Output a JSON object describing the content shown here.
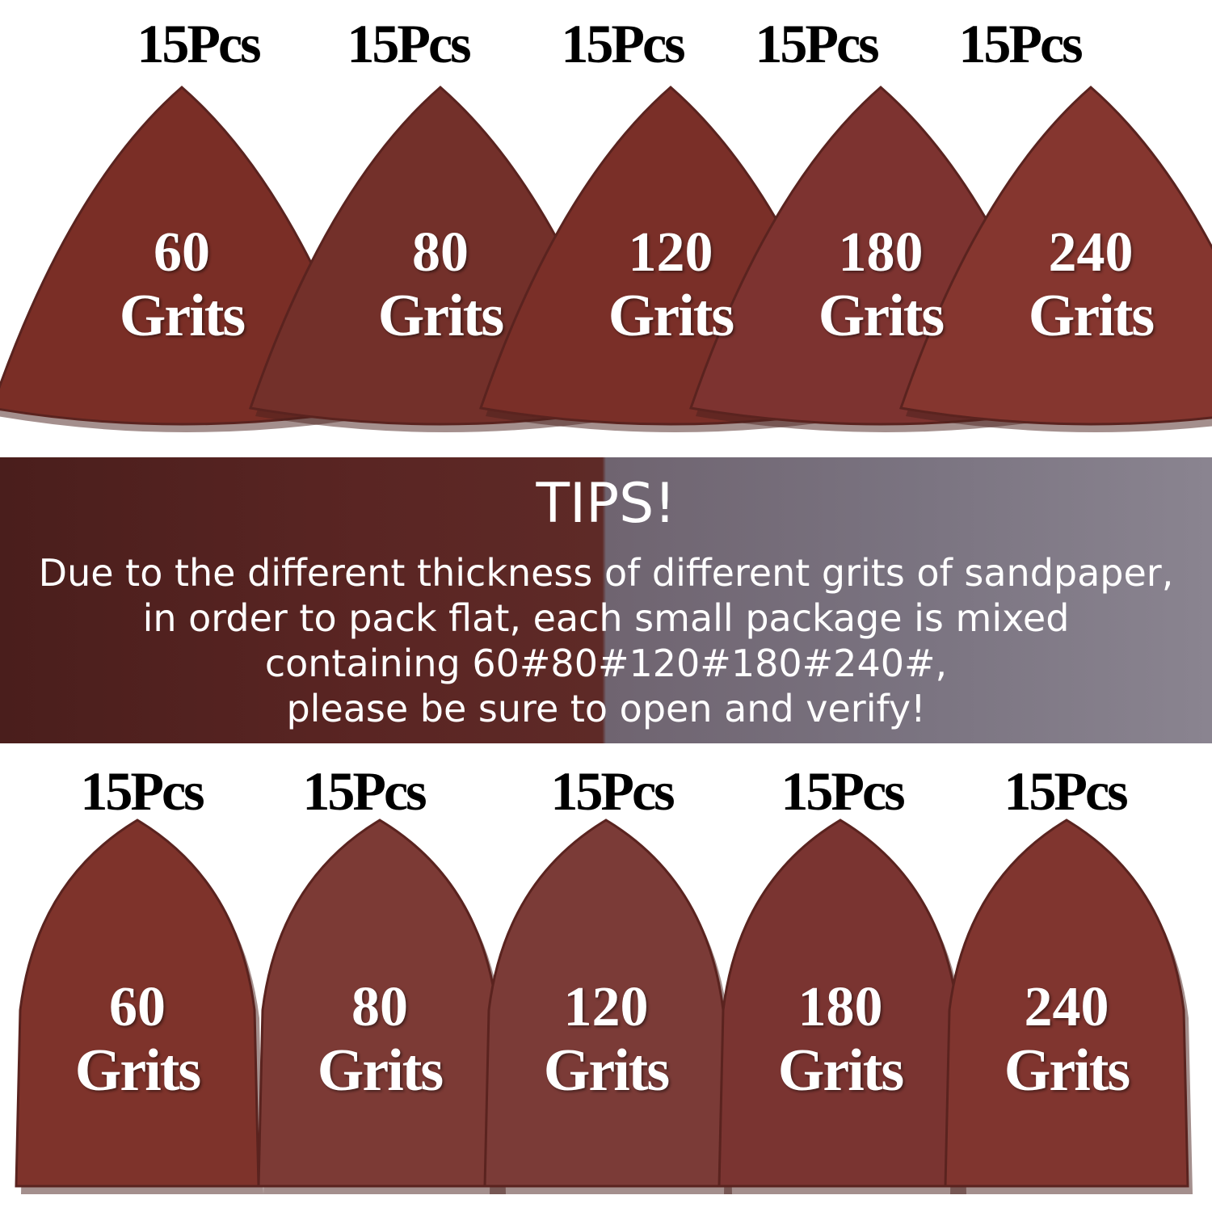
{
  "top_row": [
    {
      "count": "15Pcs",
      "grit": "60",
      "label": "Grits",
      "color": "#7a2e26"
    },
    {
      "count": "15Pcs",
      "grit": "80",
      "label": "Grits",
      "color": "#73302a"
    },
    {
      "count": "15Pcs",
      "grit": "120",
      "label": "Grits",
      "color": "#7a2f28"
    },
    {
      "count": "15Pcs",
      "grit": "180",
      "label": "Grits",
      "color": "#7d3330"
    },
    {
      "count": "15Pcs",
      "grit": "240",
      "label": "Grits",
      "color": "#85362f"
    }
  ],
  "banner": {
    "title": "TIPS!",
    "lines": [
      "Due to the different thickness of different grits of sandpaper,",
      "in order to pack flat, each small package is mixed",
      "containing 60#80#120#180#240#,",
      "please be sure to open and verify!"
    ]
  },
  "bottom_row": [
    {
      "count": "15Pcs",
      "grit": "60",
      "label": "Grits",
      "color": "#7e332b"
    },
    {
      "count": "15Pcs",
      "grit": "80",
      "label": "Grits",
      "color": "#7c3a35"
    },
    {
      "count": "15Pcs",
      "grit": "120",
      "label": "Grits",
      "color": "#7b3b37"
    },
    {
      "count": "15Pcs",
      "grit": "180",
      "label": "Grits",
      "color": "#7a3431"
    },
    {
      "count": "15Pcs",
      "grit": "240",
      "label": "Grits",
      "color": "#80352f"
    }
  ]
}
